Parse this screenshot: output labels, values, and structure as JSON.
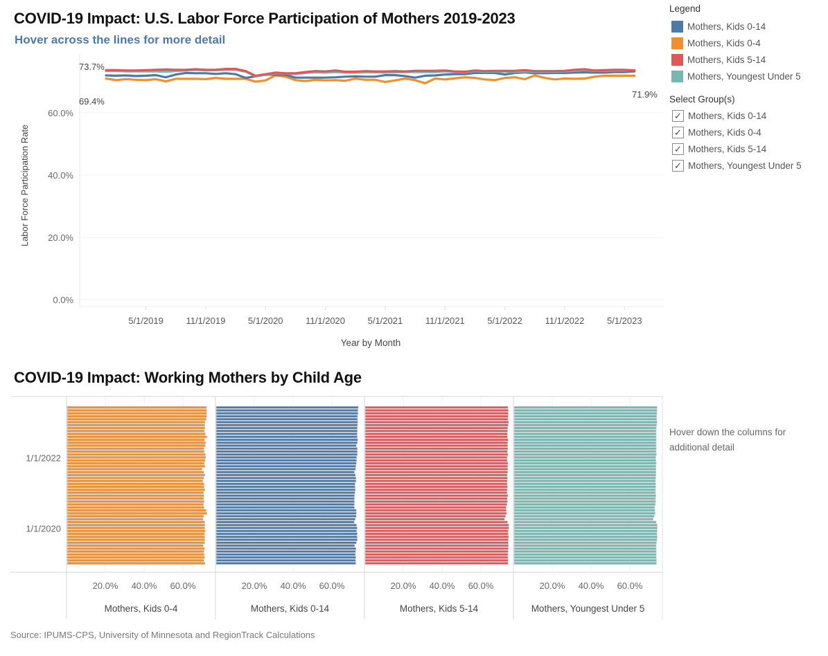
{
  "header": {
    "title": "COVID-19 Impact: U.S. Labor Force Participation of Mothers 2019-2023",
    "subtitle": "Hover across the lines for more detail"
  },
  "legend": {
    "heading": "Legend",
    "items": [
      {
        "label": "Mothers, Kids 0-14",
        "color": "#4e79a7"
      },
      {
        "label": "Mothers, Kids 0-4",
        "color": "#f28e2b"
      },
      {
        "label": "Mothers, Kids 5-14",
        "color": "#e15759"
      },
      {
        "label": "Mothers, Youngest Under 5",
        "color": "#76b7b2"
      }
    ]
  },
  "filter": {
    "heading": "Select Group(s)",
    "options": [
      {
        "label": "Mothers, Kids 0-14",
        "checked": true,
        "mark": "✓"
      },
      {
        "label": "Mothers, Kids 0-4",
        "checked": true,
        "mark": "✓"
      },
      {
        "label": "Mothers, Kids 5-14",
        "checked": true,
        "mark": "✓"
      },
      {
        "label": "Mothers, Youngest Under 5",
        "checked": true,
        "mark": "✓"
      }
    ]
  },
  "bar_section": {
    "title": "COVID-19 Impact: Working Mothers by Child Age",
    "hover_note": "Hover down the columns for additional detail"
  },
  "source": "Source: IPUMS-CPS, University of Minnesota and RegionTrack Calculations",
  "chart_data": [
    {
      "type": "line",
      "title": "COVID-19 Impact: U.S. Labor Force Participation of Mothers 2019-2023",
      "xlabel": "Year by Month",
      "ylabel": "Labor Force Participation Rate",
      "ylim": [
        0,
        75
      ],
      "yticks": [
        "0.0%",
        "20.0%",
        "40.0%",
        "60.0%"
      ],
      "ytick_values": [
        0,
        20,
        40,
        60
      ],
      "xticks": [
        "5/1/2019",
        "11/1/2019",
        "5/1/2020",
        "11/1/2020",
        "5/1/2021",
        "11/1/2021",
        "5/1/2022",
        "11/1/2022",
        "5/1/2023"
      ],
      "xtick_month_index": [
        4,
        10,
        16,
        22,
        28,
        34,
        40,
        46,
        52
      ],
      "x_start": "1/1/2019",
      "x_end": "6/1/2023",
      "grid": true,
      "annotations": [
        {
          "text": "73.7%",
          "anchor": "start-top"
        },
        {
          "text": "69.4%",
          "anchor": "start-bottom"
        },
        {
          "text": "71.9%",
          "anchor": "end"
        }
      ],
      "series": [
        {
          "name": "Mothers, Kids 5-14",
          "color": "#e15759",
          "values": [
            73.7,
            73.7,
            73.6,
            73.6,
            73.7,
            73.8,
            73.9,
            73.8,
            73.8,
            74.0,
            73.8,
            73.8,
            74.1,
            74.1,
            73.4,
            71.9,
            72.4,
            72.9,
            72.7,
            72.7,
            73.1,
            73.4,
            73.3,
            73.6,
            73.2,
            73.2,
            73.4,
            73.3,
            73.3,
            73.4,
            73.3,
            73.5,
            73.5,
            73.5,
            73.6,
            73.3,
            73.2,
            73.6,
            73.4,
            73.5,
            73.5,
            73.5,
            73.7,
            73.4,
            73.4,
            73.4,
            73.5,
            73.8,
            74.0,
            73.6,
            73.7,
            73.8,
            73.8,
            73.6
          ]
        },
        {
          "name": "Mothers, Youngest Under 5",
          "color": "#76b7b2",
          "values": [
            73.4,
            73.4,
            73.3,
            73.3,
            73.3,
            73.3,
            73.2,
            73.4,
            73.6,
            73.8,
            73.6,
            73.7,
            73.8,
            73.8,
            73.2,
            71.7,
            72.2,
            72.7,
            72.6,
            72.4,
            72.8,
            73.0,
            72.9,
            73.1,
            72.9,
            72.9,
            73.0,
            73.0,
            72.9,
            73.0,
            73.1,
            73.1,
            73.1,
            73.1,
            73.3,
            73.1,
            73.0,
            73.4,
            73.2,
            73.3,
            73.2,
            73.2,
            73.3,
            73.2,
            73.2,
            73.2,
            73.3,
            73.5,
            73.7,
            73.5,
            73.5,
            73.6,
            73.6,
            73.7
          ]
        },
        {
          "name": "Mothers, Kids 0-14",
          "color": "#4e79a7",
          "values": [
            72.0,
            71.9,
            72.0,
            71.8,
            71.9,
            72.1,
            71.4,
            72.3,
            72.8,
            72.7,
            72.7,
            72.5,
            72.7,
            72.4,
            71.2,
            71.7,
            72.2,
            72.3,
            72.2,
            71.3,
            71.3,
            71.3,
            71.3,
            71.4,
            71.6,
            71.7,
            71.6,
            71.6,
            72.1,
            72.1,
            71.8,
            71.3,
            71.9,
            72.0,
            72.3,
            72.4,
            72.4,
            72.8,
            72.8,
            72.8,
            72.3,
            72.8,
            73.0,
            72.7,
            72.7,
            72.8,
            72.8,
            72.9,
            73.0,
            72.9,
            72.9,
            73.1,
            73.1,
            73.3
          ]
        },
        {
          "name": "Mothers, Kids 0-4",
          "color": "#f28e2b",
          "values": [
            71.0,
            70.5,
            70.8,
            70.6,
            70.5,
            70.8,
            70.1,
            70.9,
            70.9,
            70.9,
            70.8,
            71.2,
            70.9,
            70.9,
            70.9,
            70.0,
            70.4,
            72.0,
            71.6,
            70.5,
            70.2,
            70.6,
            70.4,
            70.5,
            70.3,
            71.0,
            70.6,
            70.6,
            69.9,
            70.4,
            71.0,
            70.5,
            69.5,
            71.0,
            70.7,
            71.1,
            71.4,
            71.2,
            70.7,
            70.5,
            71.2,
            71.4,
            70.8,
            72.0,
            71.2,
            70.7,
            71.0,
            70.9,
            71.0,
            71.6,
            71.9,
            71.9,
            71.9,
            71.9
          ]
        }
      ]
    },
    {
      "type": "bar",
      "orientation": "horizontal",
      "title": "COVID-19 Impact: Working Mothers by Child Age",
      "y_start": "1/1/2019",
      "y_end": "6/1/2023",
      "yticks": [
        "1/1/2020",
        "1/1/2022"
      ],
      "ytick_month_index": [
        12,
        36
      ],
      "xticks": [
        "20.0%",
        "40.0%",
        "60.0%"
      ],
      "xtick_values": [
        20,
        40,
        60
      ],
      "xlim": [
        0,
        80
      ],
      "panels_from_series": [
        "Mothers, Kids 0-4",
        "Mothers, Kids 0-14",
        "Mothers, Kids 5-14",
        "Mothers, Youngest Under 5"
      ],
      "panel_labels": [
        "Mothers, Kids 0-4",
        "Mothers, Kids 0-14",
        "Mothers, Kids 5-14",
        "Mothers, Youngest Under 5"
      ]
    }
  ]
}
